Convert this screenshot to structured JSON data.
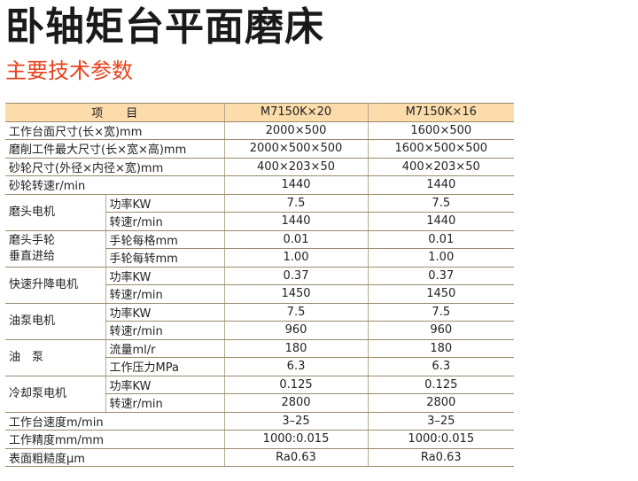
{
  "title": "卧轴矩台平面磨床",
  "subtitle": "主要技术参数",
  "table": {
    "header": {
      "item": "项　　目",
      "model1": "M7150K×20",
      "model2": "M7150K×16"
    },
    "rows": [
      {
        "label": "工作台面尺寸(长×宽)mm",
        "v1": "2000×500",
        "v2": "1600×500"
      },
      {
        "label": "磨削工件最大尺寸(长×宽×高)mm",
        "v1": "2000×500×500",
        "v2": "1600×500×500"
      },
      {
        "label": "砂轮尺寸(外径×内径×宽)mm",
        "v1": "400×203×50",
        "v2": "400×203×50"
      },
      {
        "label": "砂轮转速r/min",
        "v1": "1440",
        "v2": "1440"
      }
    ],
    "groups": [
      {
        "label": "磨头电机",
        "subs": [
          {
            "label": "功率KW",
            "v1": "7.5",
            "v2": "7.5"
          },
          {
            "label": "转速r/min",
            "v1": "1440",
            "v2": "1440"
          }
        ]
      },
      {
        "label_line1": "磨头手轮",
        "label_line2": "垂直进给",
        "subs": [
          {
            "label": "手轮每格mm",
            "v1": "0.01",
            "v2": "0.01"
          },
          {
            "label": "手轮每转mm",
            "v1": "1.00",
            "v2": "1.00"
          }
        ]
      },
      {
        "label": "快速升降电机",
        "subs": [
          {
            "label": "功率KW",
            "v1": "0.37",
            "v2": "0.37"
          },
          {
            "label": "转速r/min",
            "v1": "1450",
            "v2": "1450"
          }
        ]
      },
      {
        "label": "油泵电机",
        "subs": [
          {
            "label": "功率KW",
            "v1": "7.5",
            "v2": "7.5"
          },
          {
            "label": "转速r/min",
            "v1": "960",
            "v2": "960"
          }
        ]
      },
      {
        "label": "油　泵",
        "subs": [
          {
            "label": "流量ml/r",
            "v1": "180",
            "v2": "180"
          },
          {
            "label": "工作压力MPa",
            "v1": "6.3",
            "v2": "6.3"
          }
        ]
      },
      {
        "label": "冷却泵电机",
        "subs": [
          {
            "label": "功率KW",
            "v1": "0.125",
            "v2": "0.125"
          },
          {
            "label": "转速r/min",
            "v1": "2800",
            "v2": "2800"
          }
        ]
      }
    ],
    "footer_rows": [
      {
        "label": "工作台速度m/min",
        "v1": "3–25",
        "v2": "3–25"
      },
      {
        "label": "工作精度mm/mm",
        "v1": "1000:0.015",
        "v2": "1000:0.015"
      },
      {
        "label": "表面粗糙度μm",
        "v1": "Ra0.63",
        "v2": "Ra0.63"
      }
    ]
  }
}
